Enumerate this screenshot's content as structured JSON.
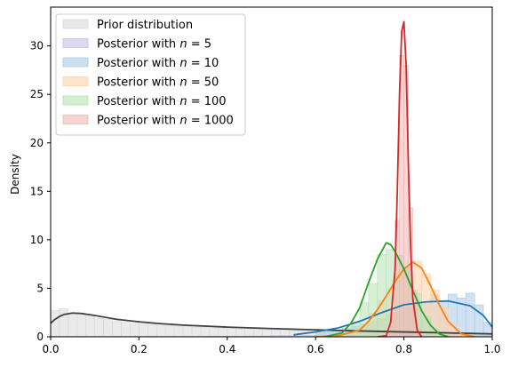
{
  "chart_data": {
    "type": "area",
    "title": "",
    "xlabel": "",
    "ylabel": "Density",
    "xlim": [
      0.0,
      1.0
    ],
    "ylim": [
      0,
      34
    ],
    "xticks": [
      "0.0",
      "0.2",
      "0.4",
      "0.6",
      "0.8",
      "1.0"
    ],
    "yticks": [
      "0",
      "5",
      "10",
      "15",
      "20",
      "25",
      "30"
    ],
    "grid": false,
    "legend_position": "top-left",
    "series": [
      {
        "name": "Prior distribution",
        "hist_color": "#d9d9d9",
        "line_color": "#404040",
        "bins": [
          0.0,
          0.02,
          0.04,
          0.06,
          0.08,
          0.1,
          0.12,
          0.14,
          0.16,
          0.18,
          0.2,
          0.22,
          0.24,
          0.26,
          0.28,
          0.3,
          0.32,
          0.34,
          0.36,
          0.38,
          0.4,
          0.42,
          0.44,
          0.46,
          0.48,
          0.5,
          0.52,
          0.54,
          0.56,
          0.58,
          0.6,
          0.62,
          0.64,
          0.66,
          0.68,
          0.7,
          0.72,
          0.74,
          0.76,
          0.78,
          0.8,
          0.82,
          0.84,
          0.86,
          0.88,
          0.9,
          0.92,
          0.94,
          0.96,
          0.98
        ],
        "bin_width": 0.02,
        "hist": [
          2.7,
          2.9,
          2.4,
          2.2,
          2.1,
          1.9,
          1.8,
          1.6,
          1.5,
          1.4,
          1.35,
          1.3,
          1.2,
          1.15,
          1.1,
          1.05,
          1.0,
          0.95,
          0.9,
          0.88,
          0.85,
          0.8,
          0.78,
          0.75,
          0.72,
          0.7,
          0.68,
          0.66,
          0.64,
          0.62,
          0.6,
          0.58,
          0.56,
          0.55,
          0.54,
          0.52,
          0.5,
          0.48,
          0.46,
          0.44,
          0.42,
          0.4,
          0.38,
          0.36,
          0.34,
          0.32,
          0.3,
          0.3,
          0.28,
          0.28
        ],
        "kde_x": [
          0.0,
          0.01,
          0.02,
          0.03,
          0.05,
          0.07,
          0.1,
          0.15,
          0.2,
          0.25,
          0.3,
          0.4,
          0.5,
          0.6,
          0.7,
          0.8,
          0.9,
          0.95,
          1.0
        ],
        "kde_y": [
          1.4,
          1.8,
          2.1,
          2.3,
          2.45,
          2.4,
          2.2,
          1.8,
          1.55,
          1.35,
          1.2,
          1.0,
          0.85,
          0.72,
          0.6,
          0.5,
          0.4,
          0.35,
          0.3
        ]
      },
      {
        "name": "Posterior with $n = 5$",
        "hist_color": "#cbbde6",
        "line_color": "#7f5fbf",
        "bins": [
          0.0,
          0.05,
          0.1,
          0.15,
          0.2,
          0.25,
          0.3,
          0.35,
          0.4,
          0.45,
          0.5,
          0.55,
          0.6,
          0.65,
          0.7,
          0.75,
          0.8,
          0.85,
          0.9,
          0.95
        ],
        "bin_width": 0.05,
        "hist": [
          0.05,
          0.05,
          0.05,
          0.05,
          0.05,
          0.05,
          0.05,
          0.06,
          0.07,
          0.08,
          0.1,
          0.12,
          0.14,
          0.16,
          0.18,
          0.2,
          0.2,
          0.2,
          0.18,
          0.15
        ],
        "kde_x": [],
        "kde_y": []
      },
      {
        "name": "Posterior with $n = 10$",
        "hist_color": "#aacbe6",
        "line_color": "#1f77b4",
        "bins": [
          0.6,
          0.62,
          0.64,
          0.66,
          0.68,
          0.7,
          0.72,
          0.74,
          0.76,
          0.78,
          0.8,
          0.82,
          0.84,
          0.86,
          0.88,
          0.9,
          0.92,
          0.94,
          0.96,
          0.98
        ],
        "bin_width": 0.02,
        "hist": [
          0.4,
          0.5,
          0.7,
          0.9,
          1.1,
          1.3,
          1.6,
          1.9,
          2.2,
          2.6,
          3.0,
          3.2,
          3.4,
          4.3,
          3.6,
          4.4,
          4.0,
          4.5,
          3.3,
          1.5
        ],
        "kde_x": [
          0.55,
          0.6,
          0.65,
          0.7,
          0.75,
          0.8,
          0.85,
          0.9,
          0.95,
          0.98,
          1.0
        ],
        "kde_y": [
          0.2,
          0.5,
          0.9,
          1.6,
          2.5,
          3.3,
          3.6,
          3.7,
          3.2,
          2.2,
          1.0
        ]
      },
      {
        "name": "Posterior with $n = 50$",
        "hist_color": "#ffd1a8",
        "line_color": "#ff7f0e",
        "bins": [
          0.66,
          0.68,
          0.7,
          0.72,
          0.74,
          0.76,
          0.78,
          0.8,
          0.82,
          0.84,
          0.86,
          0.88,
          0.9,
          0.92
        ],
        "bin_width": 0.02,
        "hist": [
          0.1,
          0.4,
          1.2,
          2.4,
          3.7,
          5.0,
          6.6,
          7.2,
          7.8,
          6.5,
          4.8,
          3.0,
          1.2,
          0.3
        ],
        "kde_x": [
          0.6,
          0.65,
          0.7,
          0.72,
          0.74,
          0.76,
          0.78,
          0.8,
          0.82,
          0.84,
          0.86,
          0.88,
          0.9,
          0.93,
          0.96
        ],
        "kde_y": [
          0.0,
          0.1,
          0.7,
          1.6,
          2.8,
          4.2,
          5.7,
          7.0,
          7.7,
          7.1,
          5.3,
          3.3,
          1.6,
          0.3,
          0.0
        ]
      },
      {
        "name": "Posterior with $n = 100$",
        "hist_color": "#b5e2b5",
        "line_color": "#2ca02c",
        "bins": [
          0.66,
          0.68,
          0.7,
          0.72,
          0.74,
          0.76,
          0.78,
          0.8,
          0.82,
          0.84,
          0.86,
          0.88
        ],
        "bin_width": 0.02,
        "hist": [
          0.4,
          1.5,
          3.5,
          5.5,
          8.5,
          9.0,
          8.4,
          7.2,
          4.5,
          2.1,
          0.8,
          0.2
        ],
        "kde_x": [
          0.62,
          0.66,
          0.68,
          0.7,
          0.72,
          0.74,
          0.76,
          0.77,
          0.78,
          0.8,
          0.82,
          0.84,
          0.86,
          0.88,
          0.9
        ],
        "kde_y": [
          0.0,
          0.4,
          1.4,
          3.0,
          5.6,
          8.0,
          9.7,
          9.5,
          8.8,
          7.0,
          4.8,
          2.7,
          1.2,
          0.3,
          0.0
        ]
      },
      {
        "name": "Posterior with $n = 1000$",
        "hist_color": "#f2b7b7",
        "line_color": "#d62728",
        "bins": [
          0.76,
          0.77,
          0.78,
          0.79,
          0.8,
          0.81,
          0.82,
          0.83
        ],
        "bin_width": 0.01,
        "hist": [
          0.5,
          2.5,
          12.0,
          29.0,
          28.0,
          13.3,
          4.8,
          0.8
        ],
        "kde_x": [
          0.74,
          0.76,
          0.77,
          0.78,
          0.785,
          0.79,
          0.795,
          0.8,
          0.805,
          0.81,
          0.815,
          0.82,
          0.83,
          0.84
        ],
        "kde_y": [
          0.0,
          0.1,
          1.5,
          7.0,
          15.0,
          25.0,
          31.5,
          32.5,
          28.0,
          18.0,
          9.5,
          4.0,
          0.7,
          0.0
        ]
      }
    ]
  }
}
